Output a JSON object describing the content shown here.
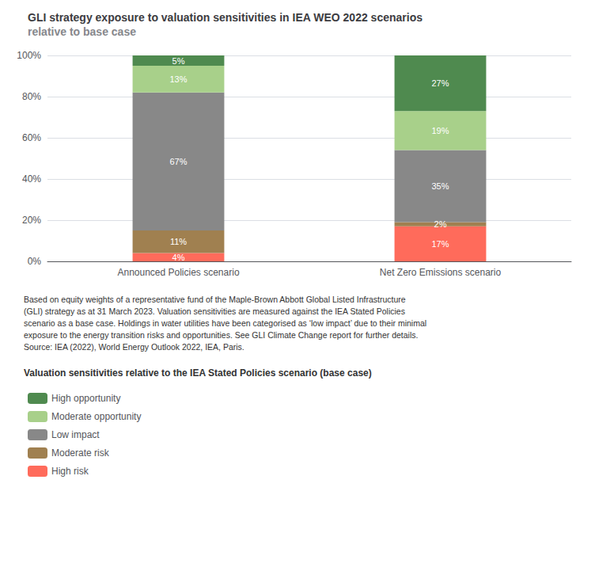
{
  "chart_data": {
    "type": "bar",
    "title": "GLI strategy exposure to valuation sensitivities in IEA WEO 2022 scenarios",
    "subtitle": "relative to base case",
    "categories": [
      "Announced Policies scenario",
      "Net Zero Emissions scenario"
    ],
    "series": [
      {
        "name": "High risk",
        "color": "#FF6B5B",
        "values": [
          4,
          17
        ],
        "value_labels": [
          "4%",
          "17%"
        ]
      },
      {
        "name": "Moderate risk",
        "color": "#A08050",
        "values": [
          11,
          2
        ],
        "value_labels": [
          "11%",
          "2%"
        ]
      },
      {
        "name": "Low impact",
        "color": "#888888",
        "values": [
          67,
          35
        ],
        "value_labels": [
          "67%",
          "35%"
        ]
      },
      {
        "name": "Moderate opportunity",
        "color": "#A8D08A",
        "values": [
          13,
          19
        ],
        "value_labels": [
          "13%",
          "19%"
        ]
      },
      {
        "name": "High opportunity",
        "color": "#4F8A4F",
        "values": [
          5,
          27
        ],
        "value_labels": [
          "5%",
          "27%"
        ]
      }
    ],
    "stacked": true,
    "data_labels": true,
    "ylim": [
      0,
      100
    ],
    "yticks": [
      {
        "value": 0,
        "label": "0%"
      },
      {
        "value": 20,
        "label": "20%"
      },
      {
        "value": 40,
        "label": "40%"
      },
      {
        "value": 60,
        "label": "60%"
      },
      {
        "value": 80,
        "label": "80%"
      },
      {
        "value": 100,
        "label": "100%"
      }
    ],
    "grid": true,
    "legend": "bottom",
    "legend_title": "Valuation sensitivities relative to the IEA Stated Policies scenario (base case)",
    "annotations": [
      "Based on equity weights of a representative fund of the Maple-Brown Abbott Global Listed Infrastructure",
      "(GLI) strategy as at 31 March 2023. Valuation sensitivities are measured against the IEA Stated Policies",
      "scenario as a base case. Holdings in water utilities have been categorised as ‘low impact’ due to their minimal",
      "exposure to the energy transition risks and opportunities. See GLI Climate Change report for further details.",
      "Source: IEA (2022), World Energy Outlook 2022, IEA, Paris."
    ]
  }
}
